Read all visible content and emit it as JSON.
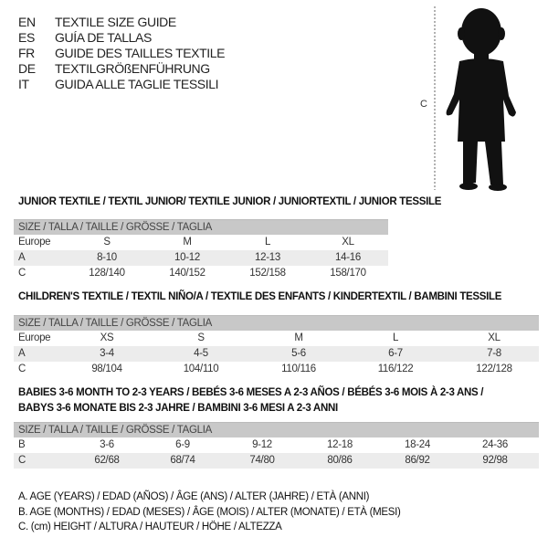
{
  "languages": [
    {
      "code": "EN",
      "title": "TEXTILE SIZE GUIDE"
    },
    {
      "code": "ES",
      "title": "GUÍA DE TALLAS"
    },
    {
      "code": "FR",
      "title": "GUIDE DES TAILLES TEXTILE"
    },
    {
      "code": "DE",
      "title": "TEXTILGRÖßENFÜHRUNG"
    },
    {
      "code": "IT",
      "title": "GUIDA ALLE TAGLIE TESSILI"
    }
  ],
  "figure": {
    "height_label": "C",
    "icon": "child-silhouette"
  },
  "junior": {
    "title": "JUNIOR TEXTILE / TEXTIL JUNIOR/ TEXTILE JUNIOR / JUNIORTEXTIL / JUNIOR TESSILE",
    "header": "SIZE / TALLA / TAILLE / GRÖSSE / TAGLIA",
    "rows": [
      {
        "label": "Europe",
        "values": [
          "S",
          "M",
          "L",
          "XL"
        ]
      },
      {
        "label": "A",
        "values": [
          "8-10",
          "10-12",
          "12-13",
          "14-16"
        ]
      },
      {
        "label": "C",
        "values": [
          "128/140",
          "140/152",
          "152/158",
          "158/170"
        ]
      }
    ]
  },
  "children": {
    "title": "CHILDREN'S TEXTILE / TEXTIL NIÑO/A / TEXTILE DES ENFANTS / KINDERTEXTIL / BAMBINI TESSILE",
    "header": "SIZE / TALLA / TAILLE / GRÖSSE / TAGLIA",
    "rows": [
      {
        "label": "Europe",
        "values": [
          "XS",
          "S",
          "M",
          "L",
          "XL"
        ]
      },
      {
        "label": "A",
        "values": [
          "3-4",
          "4-5",
          "5-6",
          "6-7",
          "7-8"
        ]
      },
      {
        "label": "C",
        "values": [
          "98/104",
          "104/110",
          "110/116",
          "116/122",
          "122/128"
        ]
      }
    ]
  },
  "babies": {
    "title_line1": "BABIES 3-6 MONTH TO 2-3 YEARS / BEBÉS 3-6 MESES A 2-3 AÑOS / BÉBÉS 3-6 MOIS À 2-3 ANS /",
    "title_line2": "BABYS 3-6 MONATE BIS 2-3 JAHRE / BAMBINI 3-6 MESI A 2-3 ANNI",
    "header": "SIZE / TALLA / TAILLE / GRÖSSE / TAGLIA",
    "rows": [
      {
        "label": "B",
        "values": [
          "3-6",
          "6-9",
          "9-12",
          "12-18",
          "18-24",
          "24-36"
        ]
      },
      {
        "label": "C",
        "values": [
          "62/68",
          "68/74",
          "74/80",
          "80/86",
          "86/92",
          "92/98"
        ]
      }
    ]
  },
  "legend": [
    "A. AGE (YEARS) / EDAD (AÑOS) / ÂGE (ANS) / ALTER (JAHRE) / ETÀ (ANNI)",
    "B. AGE (MONTHS) / EDAD (MESES) / ÂGE (MOIS) / ALTER (MONATE) / ETÀ (MESI)",
    "C. (cm) HEIGHT / ALTURA / HAUTEUR / HÖHE / ALTEZZA"
  ]
}
